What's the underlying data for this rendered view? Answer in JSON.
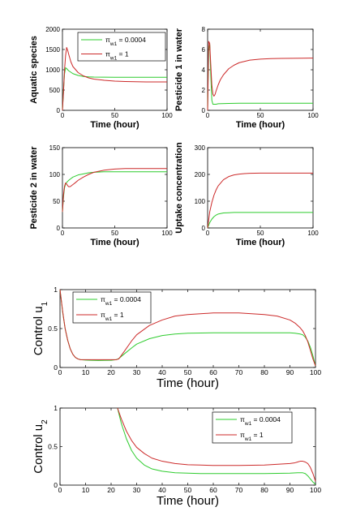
{
  "colors": {
    "series_1": "#2ecc2e",
    "series_2": "#cc2a2a",
    "axes": "#000000"
  },
  "legend_entries": [
    {
      "sym": "π",
      "sub": "w1",
      "rest": " = 0.0004"
    },
    {
      "sym": "π",
      "sub": "w1",
      "rest": " = 1"
    }
  ],
  "chart_data": [
    {
      "type": "line",
      "title": "",
      "xlabel": "Time (hour)",
      "ylabel": "Aquatic species",
      "xlim": [
        0,
        100
      ],
      "ylim": [
        0,
        2000
      ],
      "xticks": [
        0,
        50,
        100
      ],
      "yticks": [
        0,
        500,
        1000,
        1500,
        2000
      ],
      "legend": "top-right",
      "series": [
        {
          "name": "π_w1 = 0.0004",
          "x": [
            0,
            1,
            2,
            3,
            4,
            5,
            6,
            8,
            10,
            15,
            20,
            25,
            30,
            40,
            50,
            60,
            70,
            80,
            90,
            100
          ],
          "y": [
            0,
            500,
            900,
            1050,
            1030,
            1000,
            975,
            940,
            905,
            860,
            835,
            825,
            820,
            818,
            815,
            815,
            815,
            815,
            815,
            815
          ]
        },
        {
          "name": "π_w1 = 1",
          "x": [
            0,
            1,
            2,
            3,
            4,
            5,
            6,
            8,
            10,
            15,
            20,
            25,
            30,
            40,
            50,
            60,
            70,
            80,
            90,
            100
          ],
          "y": [
            0,
            450,
            1000,
            1350,
            1550,
            1480,
            1380,
            1200,
            1080,
            930,
            850,
            800,
            770,
            740,
            720,
            710,
            705,
            700,
            700,
            700
          ]
        }
      ]
    },
    {
      "type": "line",
      "title": "",
      "xlabel": "Time (hour)",
      "ylabel": "Pesticide 1 in water",
      "xlim": [
        0,
        100
      ],
      "ylim": [
        0,
        8
      ],
      "xticks": [
        0,
        50,
        100
      ],
      "yticks": [
        0,
        2,
        4,
        6,
        8
      ],
      "legend": "top-right",
      "series": [
        {
          "name": "π_w1 = 0.0004",
          "x": [
            0,
            1,
            2,
            3,
            4,
            5,
            6,
            8,
            10,
            20,
            30,
            50,
            100
          ],
          "y": [
            0,
            6.0,
            6.5,
            3.5,
            1.0,
            0.6,
            0.6,
            0.6,
            0.65,
            0.68,
            0.7,
            0.7,
            0.7
          ]
        },
        {
          "name": "π_w1 = 1",
          "x": [
            0,
            1,
            2,
            3,
            4,
            5,
            6,
            7,
            8,
            10,
            12,
            15,
            20,
            25,
            30,
            40,
            50,
            60,
            70,
            80,
            90,
            100
          ],
          "y": [
            0,
            6.8,
            6.6,
            4.5,
            2.5,
            1.6,
            1.4,
            1.55,
            1.9,
            2.5,
            3.0,
            3.5,
            4.1,
            4.45,
            4.7,
            4.95,
            5.05,
            5.1,
            5.12,
            5.13,
            5.14,
            5.15
          ]
        }
      ]
    },
    {
      "type": "line",
      "title": "",
      "xlabel": "Time (hour)",
      "ylabel": "Pesticide 2 in water",
      "xlim": [
        0,
        100
      ],
      "ylim": [
        0,
        150
      ],
      "xticks": [
        0,
        50,
        100
      ],
      "yticks": [
        0,
        50,
        100,
        150
      ],
      "legend": "top-right",
      "series": [
        {
          "name": "π_w1 = 0.0004",
          "x": [
            0,
            1,
            2,
            3,
            4,
            5,
            6,
            8,
            10,
            15,
            20,
            25,
            30,
            40,
            50,
            60,
            70,
            80,
            90,
            100
          ],
          "y": [
            30,
            58,
            75,
            82,
            85,
            87,
            89,
            92,
            95,
            99,
            101,
            103,
            104,
            105,
            105,
            105,
            105,
            105,
            105,
            105
          ]
        },
        {
          "name": "π_w1 = 1",
          "x": [
            0,
            1,
            2,
            3,
            4,
            5,
            6,
            7,
            8,
            10,
            12,
            15,
            20,
            25,
            30,
            40,
            50,
            60,
            70,
            80,
            90,
            100
          ],
          "y": [
            30,
            62,
            78,
            84,
            82,
            79,
            77,
            77,
            78,
            81,
            84,
            89,
            95,
            100,
            104,
            108,
            110,
            111,
            111,
            111,
            111,
            111
          ]
        }
      ]
    },
    {
      "type": "line",
      "title": "",
      "xlabel": "Time (hour)",
      "ylabel": "Uptake concentration",
      "xlim": [
        0,
        100
      ],
      "ylim": [
        0,
        300
      ],
      "xticks": [
        0,
        50,
        100
      ],
      "yticks": [
        0,
        100,
        200,
        300
      ],
      "legend": "top-right",
      "series": [
        {
          "name": "π_w1 = 0.0004",
          "x": [
            0,
            2,
            4,
            6,
            8,
            10,
            15,
            20,
            25,
            30,
            40,
            50,
            60,
            70,
            80,
            90,
            100
          ],
          "y": [
            0,
            20,
            33,
            42,
            48,
            52,
            56,
            57,
            58,
            58,
            58,
            58,
            58,
            58,
            58,
            58,
            58
          ]
        },
        {
          "name": "π_w1 = 1",
          "x": [
            0,
            2,
            4,
            6,
            8,
            10,
            15,
            20,
            25,
            30,
            35,
            40,
            50,
            60,
            70,
            80,
            90,
            100
          ],
          "y": [
            0,
            60,
            95,
            122,
            142,
            157,
            180,
            192,
            198,
            201,
            203,
            204,
            205,
            205,
            205,
            205,
            205,
            205
          ]
        }
      ]
    },
    {
      "type": "line",
      "title": "",
      "xlabel": "Time (hour)",
      "ylabel": "Control u",
      "ylabel_sub": "1",
      "xlim": [
        0,
        100
      ],
      "ylim": [
        0,
        1
      ],
      "xticks": [
        0,
        10,
        20,
        30,
        40,
        50,
        60,
        70,
        80,
        90,
        100
      ],
      "yticks": [
        0,
        0.5,
        1
      ],
      "legend": "top-left",
      "series": [
        {
          "name": "π_w1 = 0.0004",
          "x": [
            0,
            1,
            2,
            3,
            4,
            5,
            6,
            7,
            8,
            10,
            12,
            15,
            20,
            22,
            23,
            25,
            28,
            30,
            35,
            40,
            45,
            50,
            60,
            70,
            80,
            85,
            90,
            92,
            94,
            95,
            96,
            97,
            98,
            99,
            100
          ],
          "y": [
            1.0,
            0.72,
            0.5,
            0.35,
            0.24,
            0.17,
            0.13,
            0.11,
            0.1,
            0.095,
            0.092,
            0.09,
            0.092,
            0.1,
            0.115,
            0.17,
            0.25,
            0.3,
            0.37,
            0.41,
            0.43,
            0.44,
            0.445,
            0.445,
            0.445,
            0.445,
            0.445,
            0.44,
            0.43,
            0.42,
            0.39,
            0.34,
            0.26,
            0.15,
            0.02
          ]
        },
        {
          "name": "π_w1 = 1",
          "x": [
            0,
            1,
            2,
            3,
            4,
            5,
            6,
            7,
            8,
            10,
            12,
            15,
            20,
            22,
            23,
            25,
            28,
            30,
            35,
            40,
            45,
            50,
            60,
            70,
            80,
            85,
            90,
            92,
            94,
            95,
            96,
            97,
            98,
            99,
            100
          ],
          "y": [
            1.0,
            0.73,
            0.5,
            0.35,
            0.24,
            0.17,
            0.13,
            0.11,
            0.1,
            0.1,
            0.1,
            0.1,
            0.1,
            0.1,
            0.11,
            0.2,
            0.34,
            0.42,
            0.54,
            0.61,
            0.66,
            0.68,
            0.7,
            0.7,
            0.68,
            0.66,
            0.61,
            0.57,
            0.51,
            0.47,
            0.41,
            0.33,
            0.22,
            0.11,
            0.02
          ]
        }
      ]
    },
    {
      "type": "line",
      "title": "",
      "xlabel": "Time (hour)",
      "ylabel": "Control u",
      "ylabel_sub": "2",
      "xlim": [
        0,
        100
      ],
      "ylim": [
        0,
        1
      ],
      "xticks": [
        0,
        10,
        20,
        30,
        40,
        50,
        60,
        70,
        80,
        90,
        100
      ],
      "yticks": [
        0,
        0.5,
        1
      ],
      "legend": "top-right",
      "series": [
        {
          "name": "π_w1 = 0.0004",
          "x": [
            22.5,
            24,
            26,
            28,
            30,
            33,
            36,
            40,
            45,
            50,
            55,
            60,
            70,
            80,
            90,
            93,
            95,
            96,
            97,
            98,
            99,
            100
          ],
          "y": [
            1.0,
            0.8,
            0.6,
            0.45,
            0.35,
            0.26,
            0.21,
            0.18,
            0.16,
            0.155,
            0.15,
            0.15,
            0.15,
            0.15,
            0.155,
            0.16,
            0.16,
            0.15,
            0.12,
            0.08,
            0.04,
            0.01
          ]
        },
        {
          "name": "π_w1 = 1",
          "x": [
            22.5,
            24,
            26,
            28,
            30,
            33,
            36,
            40,
            45,
            50,
            55,
            60,
            70,
            80,
            90,
            92,
            93,
            94,
            95,
            96,
            97,
            98,
            99,
            100
          ],
          "y": [
            1.0,
            0.86,
            0.7,
            0.58,
            0.49,
            0.41,
            0.35,
            0.31,
            0.28,
            0.265,
            0.26,
            0.255,
            0.255,
            0.26,
            0.28,
            0.29,
            0.3,
            0.31,
            0.31,
            0.3,
            0.28,
            0.23,
            0.15,
            0.05
          ]
        }
      ]
    }
  ]
}
